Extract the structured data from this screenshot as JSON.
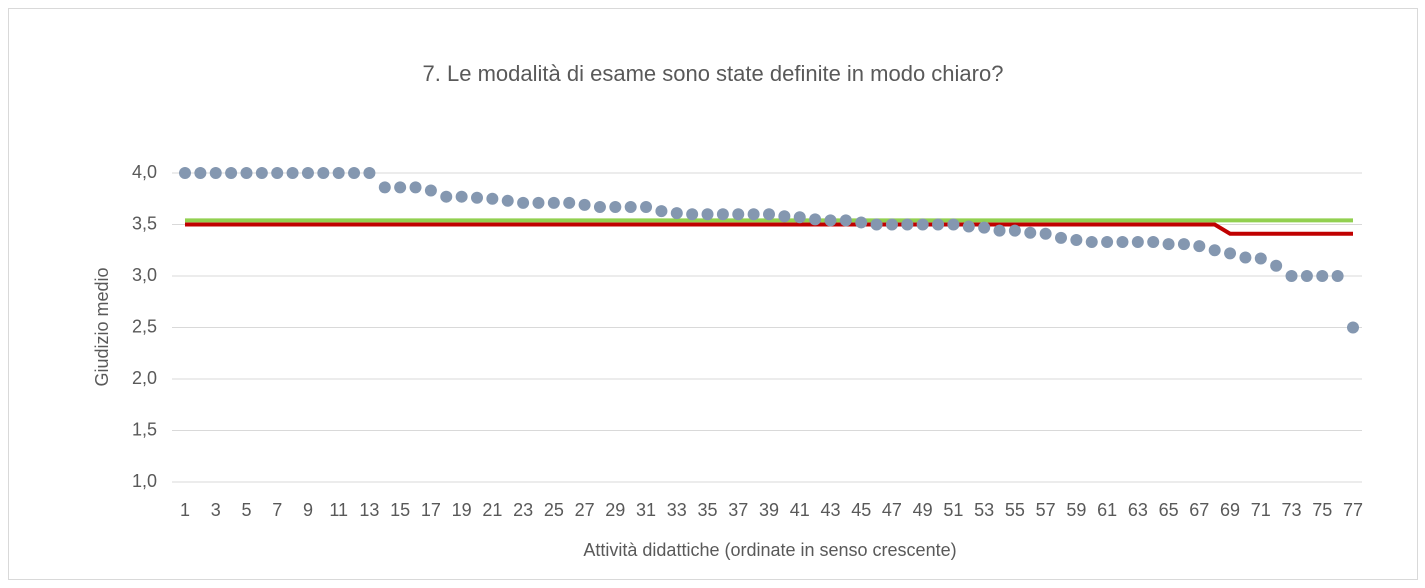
{
  "chart_data": {
    "type": "line",
    "title": "7. Le modalità di esame sono state definite in modo chiaro?",
    "x_label": "Attività didattiche (ordinate in senso crescente)",
    "y_label": "Giudizio medio",
    "categories": [
      "1",
      null,
      "3",
      null,
      "5",
      null,
      "7",
      null,
      "9",
      null,
      "11",
      null,
      "13",
      null,
      "15",
      null,
      "17",
      null,
      "19",
      null,
      "21",
      null,
      "23",
      null,
      "25",
      null,
      "27",
      null,
      "29",
      null,
      "31",
      null,
      "33",
      null,
      "35",
      null,
      "37",
      null,
      "39",
      null,
      "41",
      null,
      "43",
      null,
      "45",
      null,
      "47",
      null,
      "49",
      null,
      "51",
      null,
      "53",
      null,
      "55",
      null,
      "57",
      null,
      "59",
      null,
      "61",
      null,
      "63",
      null,
      "65",
      null,
      "67",
      null,
      "69",
      null,
      "71",
      null,
      "73",
      null,
      "75",
      null,
      "77"
    ],
    "series": [
      {
        "mode": "markers",
        "color": "#8497b0",
        "values": [
          4,
          4,
          4,
          4,
          4,
          4,
          4,
          4,
          4,
          4,
          4,
          4,
          4,
          3.86,
          3.86,
          3.86,
          3.83,
          3.77,
          3.77,
          3.76,
          3.75,
          3.73,
          3.71,
          3.71,
          3.71,
          3.71,
          3.69,
          3.67,
          3.67,
          3.67,
          3.67,
          3.63,
          3.61,
          3.6,
          3.6,
          3.6,
          3.6,
          3.6,
          3.6,
          3.58,
          3.57,
          3.55,
          3.54,
          3.54,
          3.52,
          3.5,
          3.5,
          3.5,
          3.5,
          3.5,
          3.5,
          3.48,
          3.47,
          3.44,
          3.44,
          3.42,
          3.41,
          3.37,
          3.35,
          3.33,
          3.33,
          3.33,
          3.33,
          3.33,
          3.31,
          3.31,
          3.29,
          3.25,
          3.22,
          3.18,
          3.17,
          3.1,
          3,
          3,
          3,
          3,
          2.5
        ]
      },
      {
        "mode": "lines",
        "color": "#92d050",
        "values": [
          3.54,
          3.54,
          3.54,
          3.54,
          3.54,
          3.54,
          3.54,
          3.54,
          3.54,
          3.54,
          3.54,
          3.54,
          3.54,
          3.54,
          3.54,
          3.54,
          3.54,
          3.54,
          3.54,
          3.54,
          3.54,
          3.54,
          3.54,
          3.54,
          3.54,
          3.54,
          3.54,
          3.54,
          3.54,
          3.54,
          3.54,
          3.54,
          3.54,
          3.54,
          3.54,
          3.54,
          3.54,
          3.54,
          3.54,
          3.54,
          3.54,
          3.54,
          3.54,
          3.54,
          3.54,
          3.54,
          3.54,
          3.54,
          3.54,
          3.54,
          3.54,
          3.54,
          3.54,
          3.54,
          3.54,
          3.54,
          3.54,
          3.54,
          3.54,
          3.54,
          3.54,
          3.54,
          3.54,
          3.54,
          3.54,
          3.54,
          3.54,
          3.54,
          3.54,
          3.54,
          3.54,
          3.54,
          3.54,
          3.54,
          3.54,
          3.54,
          3.54
        ]
      },
      {
        "mode": "lines",
        "color": "#c00000",
        "values": [
          3.5,
          3.5,
          3.5,
          3.5,
          3.5,
          3.5,
          3.5,
          3.5,
          3.5,
          3.5,
          3.5,
          3.5,
          3.5,
          3.5,
          3.5,
          3.5,
          3.5,
          3.5,
          3.5,
          3.5,
          3.5,
          3.5,
          3.5,
          3.5,
          3.5,
          3.5,
          3.5,
          3.5,
          3.5,
          3.5,
          3.5,
          3.5,
          3.5,
          3.5,
          3.5,
          3.5,
          3.5,
          3.5,
          3.5,
          3.5,
          3.5,
          3.5,
          3.5,
          3.5,
          3.5,
          3.5,
          3.5,
          3.5,
          3.5,
          3.5,
          3.5,
          3.5,
          3.5,
          3.5,
          3.5,
          3.5,
          3.5,
          3.5,
          3.5,
          3.5,
          3.5,
          3.5,
          3.5,
          3.5,
          3.5,
          3.5,
          3.5,
          3.5,
          3.41,
          3.41,
          3.41,
          3.41,
          3.41,
          3.41,
          3.41,
          3.41,
          3.41
        ]
      }
    ],
    "ylim": [
      1,
      4
    ],
    "yticks": [
      {
        "value": 1,
        "label": "1,0"
      },
      {
        "value": 1.5,
        "label": "1,5"
      },
      {
        "value": 2,
        "label": "2,0"
      },
      {
        "value": 2.5,
        "label": "2,5"
      },
      {
        "value": 3,
        "label": "3,0"
      },
      {
        "value": 3.5,
        "label": "3,5"
      },
      {
        "value": 4,
        "label": "4,0"
      }
    ],
    "grid": true
  }
}
